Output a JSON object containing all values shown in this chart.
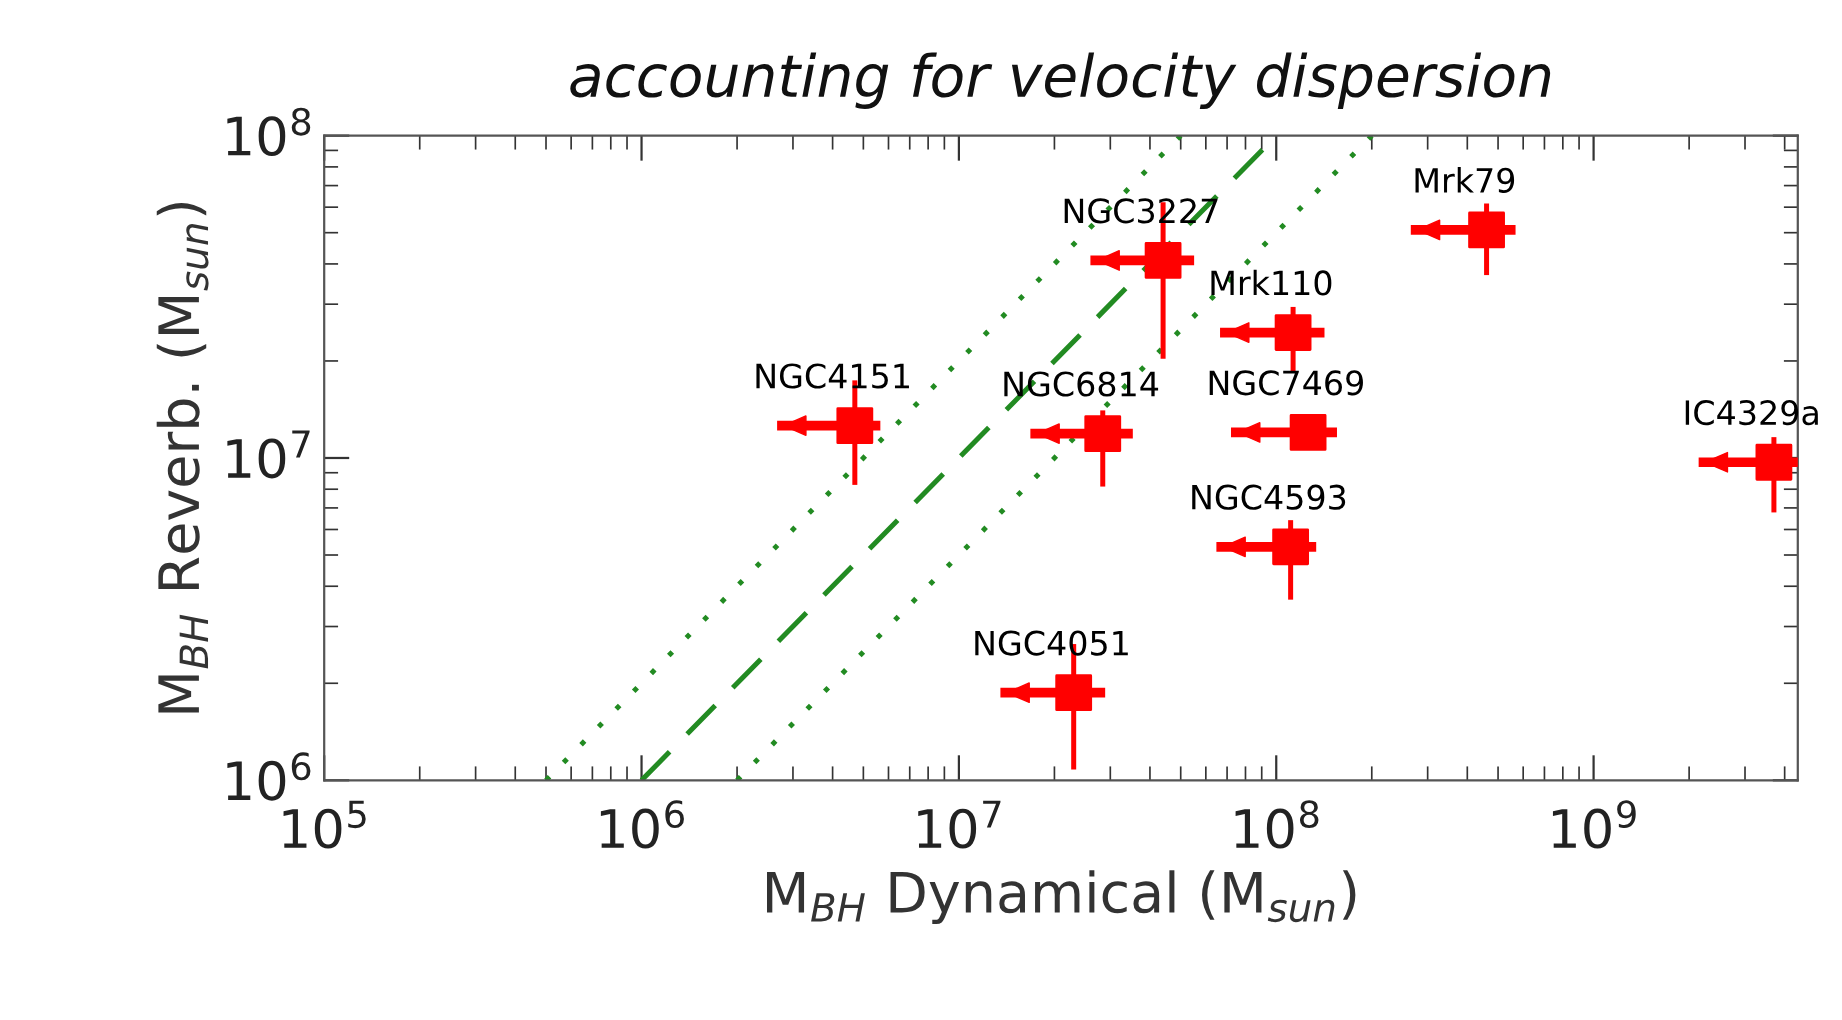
{
  "chart_data": {
    "type": "scatter",
    "title": "accounting for velocity dispersion",
    "xlabel": "M$_{BH}$ Dynamical (M$_{sun}$)",
    "ylabel": "M$_{BH}$ Reverb. (M$_{sun}$)",
    "log": "xy",
    "grid": false,
    "legend": false,
    "xlim": [
      100000,
      4400000000
    ],
    "ylim": [
      1000000,
      100000000
    ],
    "xticks": [
      {
        "value": 100000,
        "label": "10$^{5}$"
      },
      {
        "value": 1000000,
        "label": "10$^{6}$"
      },
      {
        "value": 10000000,
        "label": "10$^{7}$"
      },
      {
        "value": 100000000,
        "label": "10$^{8}$"
      },
      {
        "value": 1000000000,
        "label": "10$^{9}$"
      }
    ],
    "yticks": [
      {
        "value": 1000000,
        "label": "10$^{6}$"
      },
      {
        "value": 10000000,
        "label": "10$^{7}$"
      },
      {
        "value": 100000000,
        "label": "10$^{8}$"
      }
    ],
    "series": [
      {
        "color": "#ff0000",
        "marker": "square",
        "x": [
          44000000,
          460000000,
          113000000,
          126000000,
          28400000,
          111000000,
          23000000,
          3700000000,
          4700000
        ],
        "values": [
          41000000,
          51000000,
          24500000,
          12000000,
          11900000,
          5300000,
          1870000,
          9700000,
          12600000
        ],
        "errors": [
          [
            20700000,
            61000000
          ],
          [
            37600000,
            60500000
          ],
          [
            18800000,
            28900000
          ],
          null,
          [
            8300000,
            13800000
          ],
          [
            3700000,
            6300000
          ],
          [
            1100000,
            2600000
          ],
          [
            6900000,
            11400000
          ],
          [
            8400000,
            17100000
          ]
        ],
        "xerrors": [
          [
            26900000,
            53200000
          ],
          [
            275000000,
            548000000
          ],
          [
            68900000,
            137000000
          ],
          [
            74600000,
            150000000
          ],
          [
            17400000,
            34100000
          ],
          [
            67100000,
            129000000
          ],
          [
            14000000,
            27900000
          ],
          [
            2220000000,
            4370000000
          ],
          [
            2770000,
            5460000
          ]
        ]
      },
      {
        "type": "line",
        "color": "#228b22",
        "line_style": "dashed",
        "marker": "none",
        "x": [
          1000000,
          100000000
        ],
        "values": [
          1000000,
          100000000
        ]
      },
      {
        "type": "line",
        "color": "#228b22",
        "line_style": "dotted",
        "marker": "none",
        "x": [
          500000,
          50000000
        ],
        "values": [
          1000000,
          100000000
        ]
      },
      {
        "type": "line",
        "color": "#228b22",
        "line_style": "dotted",
        "marker": "none",
        "x": [
          2000000,
          200000000
        ],
        "values": [
          1000000,
          100000000
        ]
      }
    ],
    "annotations": [
      {
        "text": "NGC3227",
        "x": 44000000,
        "y": 41000000
      },
      {
        "text": "Mrk79",
        "x": 460000000,
        "y": 51000000
      },
      {
        "text": "Mrk110",
        "x": 113000000,
        "y": 24500000
      },
      {
        "text": "NGC7469",
        "x": 126000000,
        "y": 12000000
      },
      {
        "text": "NGC6814",
        "x": 28400000,
        "y": 11900000
      },
      {
        "text": "NGC4593",
        "x": 111000000,
        "y": 5300000
      },
      {
        "text": "NGC4051",
        "x": 23000000,
        "y": 1870000
      },
      {
        "text": "IC4329a",
        "x": 3700000000,
        "y": 9700000
      },
      {
        "text": "NGC4151",
        "x": 4700000,
        "y": 12600000
      }
    ]
  }
}
